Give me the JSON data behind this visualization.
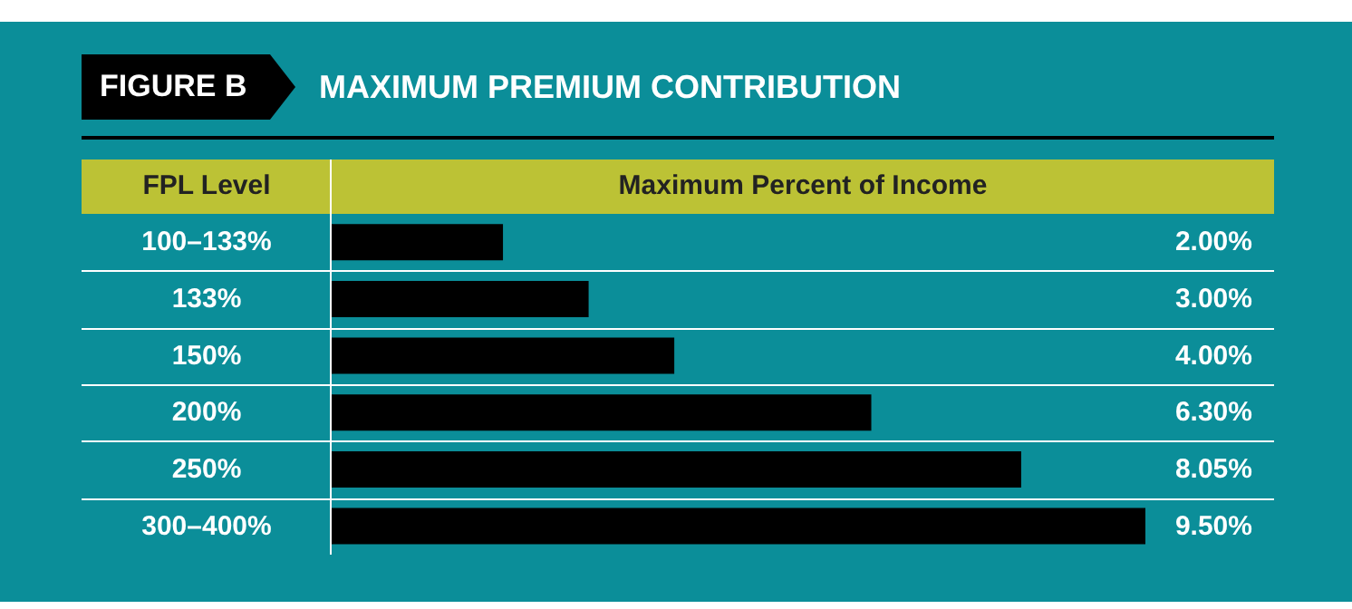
{
  "chart_data": {
    "type": "bar",
    "orientation": "horizontal",
    "title": "MAXIMUM PREMIUM CONTRIBUTION",
    "annotations": [
      "FIGURE B"
    ],
    "ylabel": "FPL Level",
    "xlabel": "Maximum Percent of Income",
    "categories": [
      "100–133%",
      "133%",
      "150%",
      "200%",
      "250%",
      "300–400%"
    ],
    "values": [
      2.0,
      3.0,
      4.0,
      6.3,
      8.05,
      9.5
    ],
    "value_labels": [
      "2.00%",
      "3.00%",
      "4.00%",
      "6.30%",
      "8.05%",
      "9.50%"
    ],
    "color": "#000000",
    "tick_labels": "y"
  }
}
